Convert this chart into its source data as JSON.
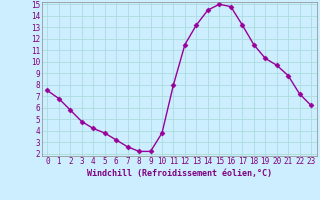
{
  "x": [
    0,
    1,
    2,
    3,
    4,
    5,
    6,
    7,
    8,
    9,
    10,
    11,
    12,
    13,
    14,
    15,
    16,
    17,
    18,
    19,
    20,
    21,
    22,
    23
  ],
  "y": [
    7.5,
    6.8,
    5.8,
    4.8,
    4.2,
    3.8,
    3.2,
    2.6,
    2.2,
    2.2,
    3.8,
    8.0,
    11.5,
    13.2,
    14.5,
    15.0,
    14.8,
    13.2,
    11.5,
    10.3,
    9.7,
    8.8,
    7.2,
    6.2
  ],
  "line_color": "#990099",
  "marker": "D",
  "marker_size": 2.5,
  "bg_color": "#cceeff",
  "grid_color": "#aadddd",
  "xlabel": "Windchill (Refroidissement éolien,°C)",
  "xlabel_color": "#800080",
  "tick_color": "#800080",
  "ylim": [
    2,
    15
  ],
  "xlim": [
    -0.5,
    23.5
  ],
  "yticks": [
    2,
    3,
    4,
    5,
    6,
    7,
    8,
    9,
    10,
    11,
    12,
    13,
    14,
    15
  ],
  "xticks": [
    0,
    1,
    2,
    3,
    4,
    5,
    6,
    7,
    8,
    9,
    10,
    11,
    12,
    13,
    14,
    15,
    16,
    17,
    18,
    19,
    20,
    21,
    22,
    23
  ],
  "tick_fontsize": 5.5,
  "xlabel_fontsize": 6,
  "linewidth": 1.0
}
